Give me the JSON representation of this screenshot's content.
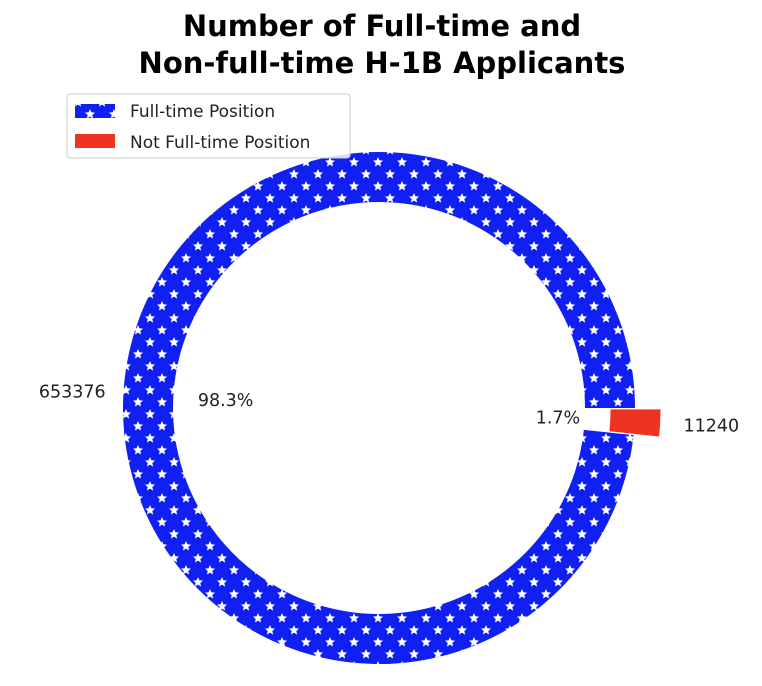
{
  "chart_data": {
    "type": "pie",
    "title": "Number of Full-time and Non-full-time H-1B Applicants",
    "title_lines": [
      "Number of Full-time and",
      "Non-full-time H-1B Applicants"
    ],
    "donut": true,
    "legend_position": "top-left",
    "categories": [
      "Full-time Position",
      "Not Full-time Position"
    ],
    "values": [
      653376,
      11240
    ],
    "value_labels": [
      "653376",
      "11240"
    ],
    "percent_labels": [
      "98.3%",
      "1.7%"
    ],
    "explode": [
      0,
      0.1
    ],
    "colors": [
      "#1020f0",
      "#ee3322"
    ],
    "hatch": [
      "white-stars",
      "none"
    ],
    "start_angle_deg": 0,
    "counterclockwise": true
  }
}
